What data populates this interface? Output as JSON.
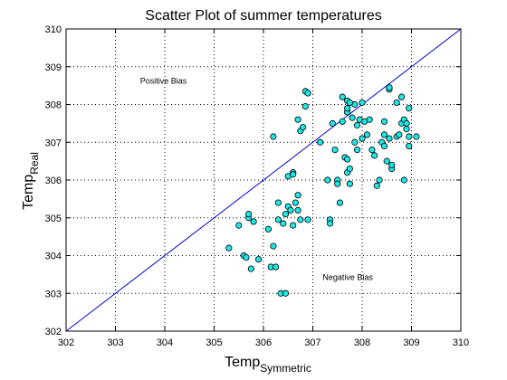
{
  "chart_data": {
    "type": "scatter",
    "title": "Scatter Plot of summer temperatures",
    "xlabel": {
      "base": "Temp",
      "subscript": "Symmetric"
    },
    "ylabel": {
      "base": "Temp",
      "subscript": "Real"
    },
    "xlim": [
      302,
      310
    ],
    "ylim": [
      302,
      310
    ],
    "xticks": [
      302,
      303,
      304,
      305,
      306,
      307,
      308,
      309,
      310
    ],
    "yticks": [
      302,
      303,
      304,
      305,
      306,
      307,
      308,
      309,
      310
    ],
    "grid": true,
    "grid_style": "dotted",
    "reference_line": {
      "x": [
        302,
        310
      ],
      "y": [
        302,
        310
      ],
      "color": "#0000cc"
    },
    "annotations": [
      {
        "text": "Positive Bias",
        "x": 303.5,
        "y": 308.55
      },
      {
        "text": "Negative Bias",
        "x": 307.2,
        "y": 303.35
      }
    ],
    "marker_face_color": "#1ee8e6",
    "marker_edge_color": "#000000",
    "points": [
      [
        305.3,
        304.2
      ],
      [
        305.5,
        304.8
      ],
      [
        305.6,
        304.0
      ],
      [
        305.65,
        303.95
      ],
      [
        305.7,
        305.0
      ],
      [
        305.7,
        305.1
      ],
      [
        305.75,
        303.65
      ],
      [
        305.8,
        304.9
      ],
      [
        305.9,
        303.9
      ],
      [
        306.1,
        304.7
      ],
      [
        306.15,
        303.7
      ],
      [
        306.2,
        304.25
      ],
      [
        306.25,
        303.7
      ],
      [
        306.3,
        304.95
      ],
      [
        306.3,
        305.4
      ],
      [
        306.35,
        303.0
      ],
      [
        306.45,
        303.0
      ],
      [
        306.4,
        304.85
      ],
      [
        306.45,
        305.1
      ],
      [
        306.5,
        305.3
      ],
      [
        306.55,
        305.2
      ],
      [
        306.6,
        304.8
      ],
      [
        306.65,
        305.4
      ],
      [
        306.7,
        305.2
      ],
      [
        306.75,
        304.95
      ],
      [
        306.9,
        304.95
      ],
      [
        306.5,
        306.1
      ],
      [
        306.6,
        306.2
      ],
      [
        306.6,
        306.15
      ],
      [
        306.7,
        305.6
      ],
      [
        306.2,
        307.15
      ],
      [
        306.7,
        307.6
      ],
      [
        306.75,
        307.3
      ],
      [
        306.8,
        307.4
      ],
      [
        306.85,
        307.95
      ],
      [
        306.85,
        308.35
      ],
      [
        306.9,
        308.3
      ],
      [
        307.15,
        307.0
      ],
      [
        307.3,
        306.0
      ],
      [
        307.35,
        304.95
      ],
      [
        307.35,
        304.85
      ],
      [
        307.4,
        307.5
      ],
      [
        307.45,
        306.8
      ],
      [
        307.5,
        306.0
      ],
      [
        307.5,
        305.9
      ],
      [
        307.55,
        305.4
      ],
      [
        307.6,
        307.55
      ],
      [
        307.65,
        306.6
      ],
      [
        307.7,
        306.55
      ],
      [
        307.7,
        307.8
      ],
      [
        307.7,
        306.2
      ],
      [
        307.75,
        305.9
      ],
      [
        307.75,
        306.3
      ],
      [
        307.8,
        307.65
      ],
      [
        307.85,
        307.0
      ],
      [
        307.9,
        307.45
      ],
      [
        307.9,
        306.8
      ],
      [
        307.95,
        307.6
      ],
      [
        308.0,
        307.1
      ],
      [
        308.05,
        307.55
      ],
      [
        308.1,
        307.2
      ],
      [
        308.15,
        307.6
      ],
      [
        308.2,
        306.8
      ],
      [
        308.25,
        306.65
      ],
      [
        308.3,
        305.85
      ],
      [
        308.35,
        306.0
      ],
      [
        308.4,
        307.0
      ],
      [
        308.45,
        307.2
      ],
      [
        308.45,
        306.9
      ],
      [
        308.5,
        306.5
      ],
      [
        308.55,
        307.1
      ],
      [
        308.6,
        306.3
      ],
      [
        308.6,
        306.4
      ],
      [
        308.7,
        307.15
      ],
      [
        308.75,
        307.2
      ],
      [
        308.8,
        307.5
      ],
      [
        308.85,
        307.6
      ],
      [
        308.85,
        306.0
      ],
      [
        308.9,
        307.35
      ],
      [
        308.95,
        307.9
      ],
      [
        308.95,
        307.15
      ],
      [
        308.95,
        306.9
      ],
      [
        309.1,
        307.15
      ],
      [
        307.6,
        308.2
      ],
      [
        307.7,
        308.1
      ],
      [
        307.85,
        308.0
      ],
      [
        307.75,
        308.05
      ],
      [
        308.0,
        308.05
      ],
      [
        308.55,
        308.4
      ],
      [
        308.55,
        308.45
      ],
      [
        308.7,
        308.05
      ],
      [
        308.8,
        308.2
      ],
      [
        308.9,
        307.5
      ],
      [
        308.45,
        307.55
      ],
      [
        307.7,
        307.9
      ]
    ]
  }
}
